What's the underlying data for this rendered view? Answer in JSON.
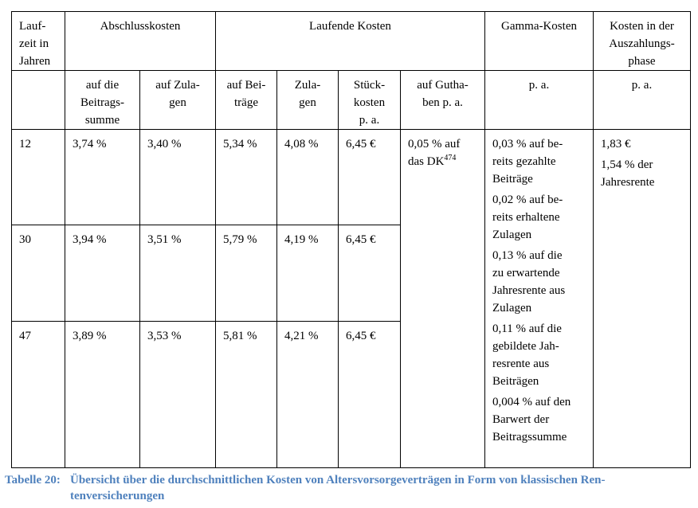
{
  "table": {
    "header_row1": {
      "laufzeit": "Lauf-\nzeit  in\nJahren",
      "abschlusskosten": "Abschlusskosten",
      "laufende_kosten": "Laufende Kosten",
      "gamma_kosten": "Gamma-Kosten",
      "auszahlung": "Kosten in der\nAuszahlungs-\nphase"
    },
    "header_row2": [
      "",
      "auf die\nBeitrags-\nsumme",
      "auf Zula-\ngen",
      "auf Bei-\nträge",
      "Zula-\ngen",
      "Stück-\nkosten\np. a.",
      "auf Gutha-\nben p. a.",
      "p. a.",
      "p. a."
    ],
    "rows": [
      {
        "laufzeit": "12",
        "abschluss_beitrag": "3,74 %",
        "abschluss_zulagen": "3,40 %",
        "lauf_beitraege": "5,34 %",
        "lauf_zulagen": "4,08 %",
        "stueckkosten": "6,45 €"
      },
      {
        "laufzeit": "30",
        "abschluss_beitrag": "3,94 %",
        "abschluss_zulagen": "3,51 %",
        "lauf_beitraege": "5,79 %",
        "lauf_zulagen": "4,19 %",
        "stueckkosten": "6,45 €"
      },
      {
        "laufzeit": "47",
        "abschluss_beitrag": "3,89 %",
        "abschluss_zulagen": "3,53 %",
        "lauf_beitraege": "5,81 %",
        "lauf_zulagen": "4,21 %",
        "stueckkosten": "6,45 €"
      }
    ],
    "guthaben": {
      "text": "0,05 % auf\ndas DK",
      "footnote": "474"
    },
    "gamma": [
      "0,03 % auf be-\nreits gezahlte\nBeiträge",
      "0,02 % auf be-\nreits erhaltene\nZulagen",
      "0,13 % auf die\nzu erwartende\nJahresrente aus\nZulagen",
      "0,11 % auf die\ngebildete Jah-\nresrente aus\nBeiträgen",
      "0,004 % auf den\nBarwert der\nBeitragssumme"
    ],
    "auszahlung": [
      "1,83 €",
      "1,54 % der\nJahresrente"
    ]
  },
  "caption": {
    "label": "Tabelle 20:",
    "text": "Übersicht über die durchschnittlichen Kosten von Altersvorsorgeverträgen in Form von klassischen Ren-\ntenversicherungen",
    "color": "#4f81bd"
  }
}
